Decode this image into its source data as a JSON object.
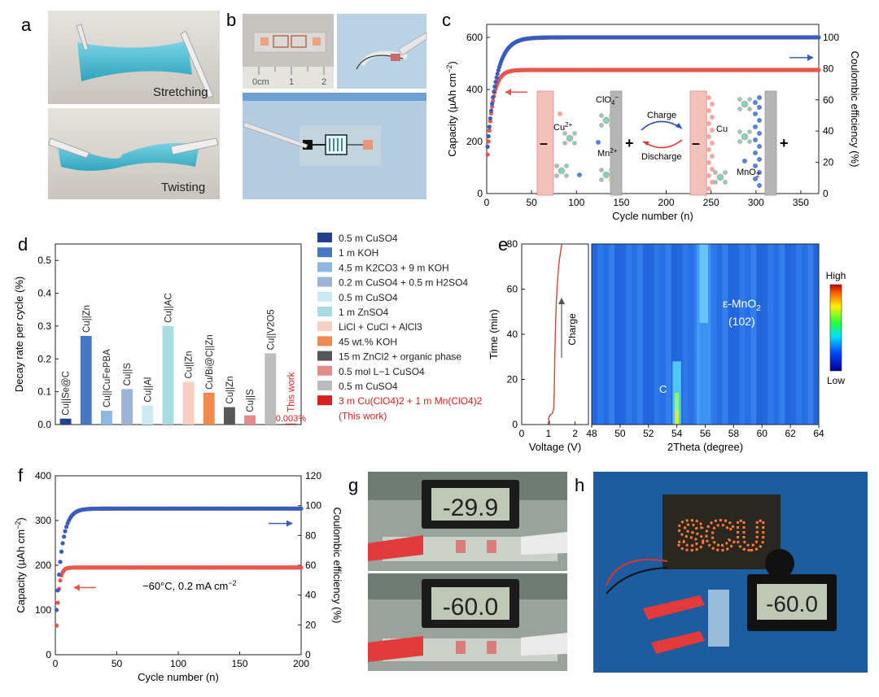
{
  "panel_labels": {
    "a": "a",
    "b": "b",
    "c": "c",
    "d": "d",
    "e": "e",
    "f": "f",
    "g": "g",
    "h": "h"
  },
  "photos": {
    "a_top_text": "Stretching",
    "a_bottom_text": "Twisting",
    "b_ruler_text": "0cm",
    "b_ruler_ticks": [
      "1",
      "2"
    ],
    "g_top_reading": "-29.9",
    "g_bottom_reading": "-60.0",
    "h_board_text": "SCU",
    "h_reading": "-60.0",
    "colors": {
      "gel": "#39b8cf",
      "photo_bg": "#d9d6d0",
      "blue_bg": "#1d5c9e",
      "lcd": "#bfc8b4"
    }
  },
  "schematic": {
    "cu_label": "Cu",
    "cu2_label": "Cu",
    "cu2_sup": "2+",
    "clo4_label": "ClO",
    "clo4_sub": "4",
    "clo4_sup": "–",
    "mn_label": "Mn",
    "mn_sup": "2+",
    "mno2_label": "MnO",
    "mno2_sub": "2",
    "charge": "Charge",
    "discharge": "Discharge",
    "minus": "–",
    "plus": "+"
  },
  "chart_data": [
    {
      "id": "c",
      "type": "scatter",
      "xlabel": "Cycle number (n)",
      "ylabel_left": "Capacity (µAh cm",
      "ylabel_left_sup": "−2",
      "ylabel_left_end": ")",
      "ylabel_right": "Coulombic efficiency (%)",
      "xlim": [
        0,
        370
      ],
      "ylim_left": [
        0,
        650
      ],
      "ylim_right": [
        0,
        108.3
      ],
      "xticks": [
        0,
        50,
        100,
        150,
        200,
        250,
        300,
        350
      ],
      "yticks_left": [
        0,
        200,
        400,
        600
      ],
      "yticks_right": [
        0,
        20,
        40,
        60,
        80,
        100
      ],
      "series": [
        {
          "axis": "left",
          "color": "#e8574a",
          "plateau": 475,
          "start": 150,
          "rise": 18
        },
        {
          "axis": "right",
          "color": "#3b5bbd",
          "plateau": 100,
          "start": 30,
          "rise": 30
        }
      ]
    },
    {
      "id": "d",
      "type": "bar",
      "ylabel": "Decay rate per cycle (%)",
      "ylim": [
        0,
        0.55
      ],
      "yticks": [
        "0.0",
        "0.1",
        "0.2",
        "0.3",
        "0.4",
        "0.5"
      ],
      "categories": [
        "Cu||Se@C",
        "Cu||Zn",
        "Cu||CuFePBA",
        "Cu||S",
        "Cu||Al",
        "Cu||AC",
        "Cu||Zn",
        "Cu/Bi@C||Zn",
        "Cu||Zn",
        "Cu||S",
        "Cu||V2O5",
        "This work"
      ],
      "values": [
        0.018,
        0.27,
        0.042,
        0.108,
        0.058,
        0.3,
        0.13,
        0.097,
        0.053,
        0.028,
        0.217,
        0.003
      ],
      "colors": [
        "#25408f",
        "#4577c2",
        "#8fb8e0",
        "#9db3d6",
        "#cdeaf3",
        "#a9dbe3",
        "#f7cfc0",
        "#f3894c",
        "#575757",
        "#e58a8a",
        "#bcbcbc",
        "#d81e1e"
      ],
      "value_label": "0.003%",
      "legend": [
        "0.5 m CuSO4",
        "1 m KOH",
        "4.5 m K2CO3 + 9 m KOH",
        "0.2 m CuSO4 + 0.5 m H2SO4",
        "0.5 m CuSO4",
        "1 m ZnSO4",
        "LiCl + CuCl + AlCl3",
        "45 wt.% KOH",
        "15 m ZnCl2 + organic phase",
        "0.5 mol L−1 CuSO4",
        "0.5 m CuSO4",
        "3 m Cu(ClO4)2 + 1 m Mn(ClO4)2",
        "(This work)"
      ]
    },
    {
      "id": "e",
      "type": "heatmap",
      "ylabel": "Time (min)",
      "ylim": [
        0,
        80
      ],
      "yticks": [
        0,
        20,
        40,
        60,
        80
      ],
      "left_xlabel": "Voltage (V)",
      "left_xlim": [
        0,
        2.5
      ],
      "left_xticks": [
        0,
        1,
        2
      ],
      "left_annotation": "Charge",
      "xlabel": "2Theta (degree)",
      "xlim": [
        48,
        64
      ],
      "xticks": [
        48,
        50,
        52,
        54,
        56,
        58,
        60,
        62,
        64
      ],
      "peak_label_1": "ε-MnO",
      "peak_label_1_sub": "2",
      "peak_label_2": "(102)",
      "peak_label_c": "C",
      "colorbar_high": "High",
      "colorbar_low": "Low",
      "voltage_curve": [
        [
          1.05,
          0
        ],
        [
          1.05,
          1
        ],
        [
          1.0,
          2.5
        ],
        [
          1.05,
          4
        ],
        [
          1.15,
          5
        ],
        [
          1.2,
          7
        ],
        [
          1.22,
          15
        ],
        [
          1.24,
          30
        ],
        [
          1.27,
          45
        ],
        [
          1.3,
          55
        ],
        [
          1.35,
          65
        ],
        [
          1.4,
          72
        ],
        [
          1.45,
          76
        ],
        [
          1.5,
          80
        ]
      ]
    },
    {
      "id": "f",
      "type": "scatter",
      "xlabel": "Cycle number (n)",
      "ylabel_left": "Capacity (µAh cm",
      "ylabel_left_sup": "−2",
      "ylabel_left_end": ")",
      "ylabel_right": "Coulombic efficiency (%)",
      "annotation": "−60°C, 0.2 mA cm",
      "annotation_sup": "−2",
      "xlim": [
        0,
        200
      ],
      "ylim_left": [
        0,
        400
      ],
      "ylim_right": [
        0,
        120
      ],
      "xticks": [
        0,
        50,
        100,
        150,
        200
      ],
      "yticks_left": [
        0,
        100,
        200,
        300,
        400
      ],
      "yticks_right": [
        0,
        20,
        40,
        60,
        80,
        100,
        120
      ],
      "series": [
        {
          "axis": "left",
          "color": "#e8574a",
          "plateau": 195,
          "start": 65,
          "rise": 6
        },
        {
          "axis": "right",
          "color": "#3b5bbd",
          "plateau": 98,
          "start": 30,
          "rise": 14
        }
      ]
    }
  ]
}
